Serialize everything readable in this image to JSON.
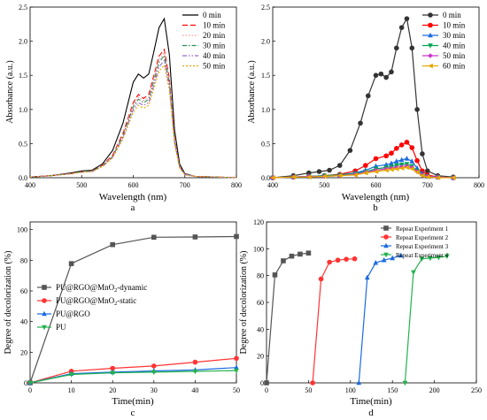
{
  "chart_data": [
    {
      "id": "a",
      "type": "line",
      "panel_label": "a",
      "xlabel": "Wavelength (nm)",
      "ylabel": "Absorbance (a.u.)",
      "xlim": [
        400,
        800
      ],
      "ylim": [
        0,
        2.5
      ],
      "xticks": [
        400,
        500,
        600,
        700,
        800
      ],
      "yticks": [
        0.0,
        0.5,
        1.0,
        1.5,
        2.0,
        2.5
      ],
      "ytick_labels": [
        "0.0",
        "0.5",
        "1.0",
        "1.5",
        "2.0",
        "2.5"
      ],
      "legend_position": "top-right",
      "series": [
        {
          "name": "0 min",
          "color": "#000000",
          "dash": "solid",
          "x": [
            400,
            440,
            480,
            500,
            520,
            540,
            560,
            580,
            600,
            610,
            620,
            630,
            640,
            650,
            660,
            670,
            680,
            690,
            700,
            720,
            760,
            800
          ],
          "y": [
            0.01,
            0.03,
            0.07,
            0.1,
            0.11,
            0.2,
            0.4,
            0.8,
            1.4,
            1.52,
            1.46,
            1.52,
            1.85,
            2.2,
            2.33,
            1.8,
            0.7,
            0.2,
            0.06,
            0.02,
            0.01,
            0.0
          ]
        },
        {
          "name": "10 min",
          "color": "#ff0000",
          "dash": "long",
          "x": [
            400,
            440,
            480,
            500,
            520,
            540,
            560,
            580,
            600,
            610,
            620,
            630,
            640,
            650,
            660,
            670,
            680,
            690,
            700,
            720,
            760,
            800
          ],
          "y": [
            0.01,
            0.03,
            0.06,
            0.09,
            0.1,
            0.18,
            0.33,
            0.65,
            1.1,
            1.22,
            1.16,
            1.22,
            1.5,
            1.78,
            1.88,
            1.45,
            0.56,
            0.16,
            0.05,
            0.02,
            0.01,
            0.0
          ]
        },
        {
          "name": "20 min",
          "color": "#ff9999",
          "dash": "dot",
          "x": [
            400,
            440,
            480,
            500,
            520,
            540,
            560,
            580,
            600,
            610,
            620,
            630,
            640,
            650,
            660,
            670,
            680,
            690,
            700,
            720,
            760,
            800
          ],
          "y": [
            0.01,
            0.03,
            0.06,
            0.09,
            0.1,
            0.18,
            0.32,
            0.63,
            1.07,
            1.18,
            1.13,
            1.18,
            1.46,
            1.73,
            1.83,
            1.41,
            0.55,
            0.16,
            0.05,
            0.02,
            0.01,
            0.0
          ]
        },
        {
          "name": "30 min",
          "color": "#2e8b57",
          "dash": "dashdot",
          "x": [
            400,
            440,
            480,
            500,
            520,
            540,
            560,
            580,
            600,
            610,
            620,
            630,
            640,
            650,
            660,
            670,
            680,
            690,
            700,
            720,
            760,
            800
          ],
          "y": [
            0.01,
            0.03,
            0.06,
            0.09,
            0.1,
            0.17,
            0.31,
            0.61,
            1.04,
            1.15,
            1.1,
            1.15,
            1.42,
            1.69,
            1.79,
            1.38,
            0.54,
            0.15,
            0.05,
            0.02,
            0.01,
            0.0
          ]
        },
        {
          "name": "40 min",
          "color": "#9966cc",
          "dash": "dashdotdot",
          "x": [
            400,
            440,
            480,
            500,
            520,
            540,
            560,
            580,
            600,
            610,
            620,
            630,
            640,
            650,
            660,
            670,
            680,
            690,
            700,
            720,
            760,
            800
          ],
          "y": [
            0.01,
            0.03,
            0.06,
            0.08,
            0.09,
            0.16,
            0.3,
            0.59,
            1.0,
            1.1,
            1.06,
            1.1,
            1.36,
            1.62,
            1.72,
            1.33,
            0.52,
            0.15,
            0.05,
            0.02,
            0.01,
            0.0
          ]
        },
        {
          "name": "50 min",
          "color": "#e6a800",
          "dash": "shortdot",
          "x": [
            400,
            440,
            480,
            500,
            520,
            540,
            560,
            580,
            600,
            610,
            620,
            630,
            640,
            650,
            660,
            670,
            680,
            690,
            700,
            720,
            760,
            800
          ],
          "y": [
            0.01,
            0.03,
            0.06,
            0.08,
            0.09,
            0.16,
            0.29,
            0.57,
            0.96,
            1.06,
            1.02,
            1.06,
            1.31,
            1.56,
            1.65,
            1.28,
            0.5,
            0.14,
            0.04,
            0.02,
            0.01,
            0.0
          ]
        }
      ]
    },
    {
      "id": "b",
      "type": "line",
      "panel_label": "b",
      "xlabel": "Wavelength (nm)",
      "ylabel": "Absorbance (a.u.)",
      "xlim": [
        400,
        800
      ],
      "ylim": [
        0,
        2.5
      ],
      "xticks": [
        400,
        500,
        600,
        700,
        800
      ],
      "yticks": [
        0.0,
        0.5,
        1.0,
        1.5,
        2.0,
        2.5
      ],
      "ytick_labels": [
        "0.0",
        "0.5",
        "1.0",
        "1.5",
        "2.0",
        "2.5"
      ],
      "legend_position": "top-right",
      "series": [
        {
          "name": "0 min",
          "color": "#333333",
          "marker": "circle",
          "x": [
            400,
            440,
            470,
            490,
            510,
            530,
            550,
            570,
            585,
            600,
            610,
            620,
            630,
            640,
            650,
            660,
            670,
            680,
            690,
            700,
            720,
            750
          ],
          "y": [
            0.0,
            0.03,
            0.07,
            0.09,
            0.11,
            0.18,
            0.4,
            0.8,
            1.2,
            1.5,
            1.52,
            1.47,
            1.55,
            1.9,
            2.2,
            2.33,
            1.9,
            1.0,
            0.35,
            0.1,
            0.03,
            0.01
          ]
        },
        {
          "name": "10 min",
          "color": "#ff0000",
          "marker": "circle",
          "x": [
            400,
            440,
            470,
            500,
            530,
            560,
            580,
            600,
            620,
            630,
            640,
            650,
            660,
            670,
            680,
            690,
            700,
            720,
            750
          ],
          "y": [
            0.0,
            0.01,
            0.02,
            0.03,
            0.05,
            0.1,
            0.18,
            0.28,
            0.32,
            0.36,
            0.43,
            0.48,
            0.52,
            0.44,
            0.25,
            0.1,
            0.04,
            0.01,
            0.0
          ]
        },
        {
          "name": "30 min",
          "color": "#1a6be0",
          "marker": "triangle",
          "x": [
            400,
            440,
            470,
            500,
            530,
            560,
            580,
            600,
            620,
            630,
            640,
            650,
            660,
            670,
            680,
            690,
            700,
            720,
            750
          ],
          "y": [
            0.0,
            0.01,
            0.02,
            0.03,
            0.04,
            0.07,
            0.11,
            0.17,
            0.19,
            0.21,
            0.24,
            0.26,
            0.28,
            0.24,
            0.14,
            0.06,
            0.02,
            0.01,
            0.0
          ]
        },
        {
          "name": "40 min",
          "color": "#00a651",
          "marker": "triangle-down",
          "x": [
            400,
            440,
            470,
            500,
            530,
            560,
            580,
            600,
            620,
            630,
            640,
            650,
            660,
            670,
            680,
            690,
            700,
            720,
            750
          ],
          "y": [
            0.0,
            0.01,
            0.02,
            0.03,
            0.04,
            0.06,
            0.09,
            0.13,
            0.15,
            0.16,
            0.18,
            0.19,
            0.2,
            0.17,
            0.1,
            0.04,
            0.02,
            0.01,
            0.0
          ]
        },
        {
          "name": "50 min",
          "color": "#cc33cc",
          "marker": "diamond",
          "x": [
            400,
            440,
            470,
            500,
            530,
            560,
            580,
            600,
            620,
            630,
            640,
            650,
            660,
            670,
            680,
            690,
            700,
            720,
            750
          ],
          "y": [
            0.0,
            0.01,
            0.02,
            0.02,
            0.03,
            0.05,
            0.08,
            0.11,
            0.13,
            0.14,
            0.15,
            0.16,
            0.17,
            0.15,
            0.09,
            0.04,
            0.02,
            0.01,
            0.0
          ]
        },
        {
          "name": "60 min",
          "color": "#e6a800",
          "marker": "triangle-left",
          "x": [
            400,
            440,
            470,
            500,
            530,
            560,
            580,
            600,
            620,
            630,
            640,
            650,
            660,
            670,
            680,
            690,
            700,
            720,
            750
          ],
          "y": [
            0.0,
            0.01,
            0.01,
            0.02,
            0.03,
            0.04,
            0.07,
            0.09,
            0.11,
            0.12,
            0.13,
            0.14,
            0.15,
            0.13,
            0.08,
            0.03,
            0.01,
            0.0,
            0.0
          ]
        }
      ]
    },
    {
      "id": "c",
      "type": "line",
      "panel_label": "c",
      "xlabel": "Time(min)",
      "ylabel": "Degree of decolorization (%)",
      "xlim": [
        0,
        50
      ],
      "ylim": [
        0,
        105
      ],
      "xticks": [
        0,
        10,
        20,
        30,
        40,
        50
      ],
      "yticks": [
        0,
        20,
        40,
        60,
        80,
        100
      ],
      "legend_position": "center-left",
      "series": [
        {
          "name": "PU@RGO@MnO",
          "name_sub": "2",
          "name_suffix": "-dynamic",
          "color": "#555555",
          "marker": "square",
          "x": [
            0,
            10,
            20,
            30,
            40,
            50
          ],
          "y": [
            0,
            77.8,
            90.2,
            95.0,
            95.2,
            95.5
          ]
        },
        {
          "name": "PU@RGO@MnO",
          "name_sub": "2",
          "name_suffix": "-static",
          "color": "#ff3333",
          "marker": "circle",
          "x": [
            0,
            10,
            20,
            30,
            40,
            50
          ],
          "y": [
            0,
            7.6,
            9.5,
            11.0,
            13.5,
            16.0
          ]
        },
        {
          "name": "PU@RGO",
          "name_sub": "",
          "name_suffix": "",
          "color": "#1a6be0",
          "marker": "triangle",
          "x": [
            0,
            10,
            20,
            30,
            40,
            50
          ],
          "y": [
            0,
            6.0,
            7.0,
            7.8,
            8.4,
            10.0
          ]
        },
        {
          "name": "PU",
          "name_sub": "",
          "name_suffix": "",
          "color": "#22b24c",
          "marker": "triangle-down",
          "x": [
            0,
            10,
            20,
            30,
            40,
            50
          ],
          "y": [
            0,
            5.5,
            6.5,
            7.0,
            7.5,
            8.0
          ]
        }
      ]
    },
    {
      "id": "d",
      "type": "line",
      "panel_label": "d",
      "xlabel": "Time(min)",
      "ylabel": "Degree of decolorization (%)",
      "xlim": [
        0,
        250
      ],
      "ylim": [
        0,
        120
      ],
      "xticks": [
        0,
        50,
        100,
        150,
        200,
        250
      ],
      "yticks": [
        0,
        20,
        40,
        60,
        80,
        100,
        120
      ],
      "legend_position": "top-right",
      "series": [
        {
          "name": "Repeat Experiment 1",
          "color": "#555555",
          "marker": "square",
          "x": [
            0,
            10,
            20,
            30,
            40,
            50
          ],
          "y": [
            0,
            80.5,
            91.0,
            94.5,
            96.0,
            96.8
          ]
        },
        {
          "name": "Repeat Experiment 2",
          "color": "#ff3333",
          "marker": "circle",
          "x": [
            55,
            65,
            75,
            85,
            95,
            105
          ],
          "y": [
            0,
            77.5,
            90.0,
            91.5,
            92.2,
            92.5
          ]
        },
        {
          "name": "Repeat Experiment 3",
          "color": "#1a6be0",
          "marker": "triangle",
          "x": [
            110,
            120,
            130,
            140,
            150,
            160
          ],
          "y": [
            0,
            78.5,
            89.5,
            91.5,
            93.0,
            95.0
          ]
        },
        {
          "name": "Repeat Experiment 4",
          "color": "#22b24c",
          "marker": "triangle-down",
          "x": [
            165,
            175,
            185,
            195,
            205,
            215
          ],
          "y": [
            0,
            82.5,
            92.5,
            93.0,
            93.5,
            94.5
          ]
        }
      ]
    }
  ]
}
